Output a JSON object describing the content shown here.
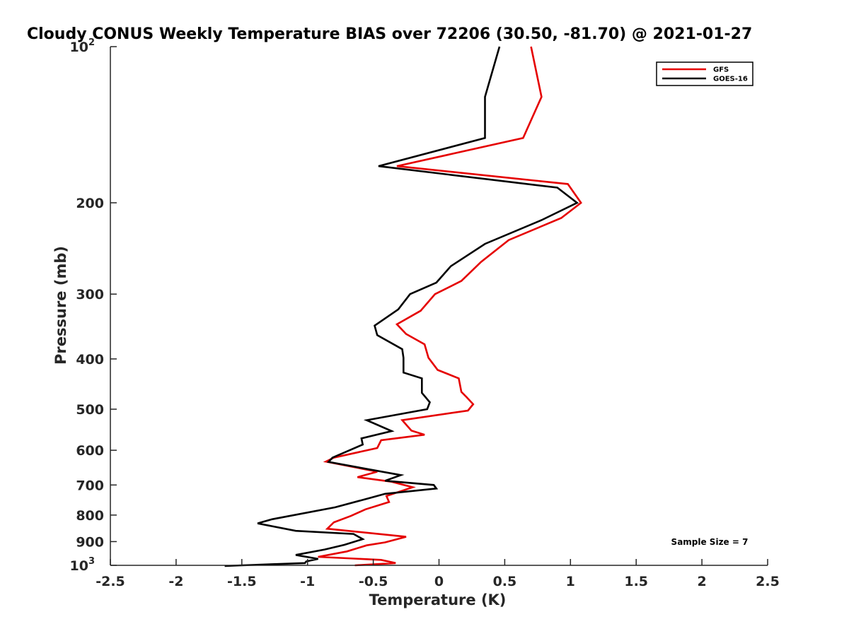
{
  "chart_data": {
    "type": "line",
    "title": "Cloudy CONUS Weekly Temperature BIAS over 72206 (30.50, -81.70) @ 2021-01-27",
    "xlabel": "Temperature (K)",
    "ylabel": "Pressure (mb)",
    "xlim": [
      -2.5,
      2.5
    ],
    "ylim": [
      100,
      1000
    ],
    "yscale": "log",
    "yreverse": true,
    "x_ticks": [
      {
        "value": -2.5,
        "label": "-2.5"
      },
      {
        "value": -2,
        "label": "-2"
      },
      {
        "value": -1.5,
        "label": "-1.5"
      },
      {
        "value": -1,
        "label": "-1"
      },
      {
        "value": -0.5,
        "label": "-0.5"
      },
      {
        "value": 0,
        "label": "0"
      },
      {
        "value": 0.5,
        "label": "0.5"
      },
      {
        "value": 1,
        "label": "1"
      },
      {
        "value": 1.5,
        "label": "1.5"
      },
      {
        "value": 2,
        "label": "2"
      },
      {
        "value": 2.5,
        "label": "2.5"
      }
    ],
    "y_ticks": [
      {
        "value": 100,
        "label": "10",
        "sup": "2"
      },
      {
        "value": 200,
        "label": "200"
      },
      {
        "value": 300,
        "label": "300"
      },
      {
        "value": 400,
        "label": "400"
      },
      {
        "value": 500,
        "label": "500"
      },
      {
        "value": 600,
        "label": "600"
      },
      {
        "value": 700,
        "label": "700"
      },
      {
        "value": 800,
        "label": "800"
      },
      {
        "value": 900,
        "label": "900"
      },
      {
        "value": 1000,
        "label": "10",
        "sup": "3"
      }
    ],
    "legend_position": "top-right",
    "annotation": "Sample Size = 7",
    "series": [
      {
        "name": "GFS",
        "color": "#e50000",
        "points": [
          [
            0.7,
            100
          ],
          [
            0.78,
            125
          ],
          [
            0.64,
            150
          ],
          [
            -0.32,
            170
          ],
          [
            0.98,
            184
          ],
          [
            1.08,
            200
          ],
          [
            0.93,
            214
          ],
          [
            0.53,
            236
          ],
          [
            0.32,
            260
          ],
          [
            0.17,
            283
          ],
          [
            -0.03,
            300
          ],
          [
            -0.14,
            323
          ],
          [
            -0.32,
            343
          ],
          [
            -0.25,
            358
          ],
          [
            -0.11,
            375
          ],
          [
            -0.08,
            398
          ],
          [
            -0.01,
            420
          ],
          [
            0.15,
            436
          ],
          [
            0.17,
            463
          ],
          [
            0.21,
            474
          ],
          [
            0.26,
            489
          ],
          [
            0.22,
            503
          ],
          [
            -0.28,
            525
          ],
          [
            -0.21,
            550
          ],
          [
            -0.11,
            560
          ],
          [
            -0.44,
            574
          ],
          [
            -0.47,
            594
          ],
          [
            -0.8,
            620
          ],
          [
            -0.86,
            631
          ],
          [
            -0.47,
            660
          ],
          [
            -0.62,
            676
          ],
          [
            -0.36,
            690
          ],
          [
            -0.2,
            707
          ],
          [
            -0.4,
            735
          ],
          [
            -0.38,
            755
          ],
          [
            -0.56,
            780
          ],
          [
            -0.67,
            803
          ],
          [
            -0.8,
            826
          ],
          [
            -0.85,
            850
          ],
          [
            -0.25,
            881
          ],
          [
            -0.41,
            903
          ],
          [
            -0.55,
            915
          ],
          [
            -0.7,
            940
          ],
          [
            -0.92,
            963
          ],
          [
            -0.44,
            976
          ],
          [
            -0.33,
            990
          ],
          [
            -0.64,
            1000
          ]
        ]
      },
      {
        "name": "GOES-16",
        "color": "#000000",
        "points": [
          [
            0.46,
            100
          ],
          [
            0.35,
            125
          ],
          [
            0.35,
            150
          ],
          [
            -0.46,
            170
          ],
          [
            0.9,
            187
          ],
          [
            1.05,
            200
          ],
          [
            0.78,
            216
          ],
          [
            0.35,
            240
          ],
          [
            0.09,
            265
          ],
          [
            -0.02,
            285
          ],
          [
            -0.22,
            300
          ],
          [
            -0.31,
            321
          ],
          [
            -0.49,
            345
          ],
          [
            -0.47,
            360
          ],
          [
            -0.28,
            383
          ],
          [
            -0.27,
            398
          ],
          [
            -0.27,
            425
          ],
          [
            -0.13,
            436
          ],
          [
            -0.13,
            465
          ],
          [
            -0.07,
            485
          ],
          [
            -0.09,
            500
          ],
          [
            -0.55,
            525
          ],
          [
            -0.36,
            551
          ],
          [
            -0.59,
            569
          ],
          [
            -0.58,
            585
          ],
          [
            -0.81,
            620
          ],
          [
            -0.84,
            632
          ],
          [
            -0.29,
            670
          ],
          [
            -0.41,
            687
          ],
          [
            -0.04,
            700
          ],
          [
            -0.02,
            711
          ],
          [
            -0.41,
            728
          ],
          [
            -0.52,
            741
          ],
          [
            -0.79,
            773
          ],
          [
            -1.27,
            815
          ],
          [
            -1.38,
            830
          ],
          [
            -1.09,
            858
          ],
          [
            -0.65,
            870
          ],
          [
            -0.58,
            890
          ],
          [
            -0.72,
            913
          ],
          [
            -0.87,
            932
          ],
          [
            -1.09,
            955
          ],
          [
            -0.92,
            972
          ],
          [
            -1.01,
            983
          ],
          [
            -1.02,
            990
          ],
          [
            -1.5,
            1000
          ],
          [
            -1.63,
            1003
          ]
        ]
      }
    ]
  }
}
